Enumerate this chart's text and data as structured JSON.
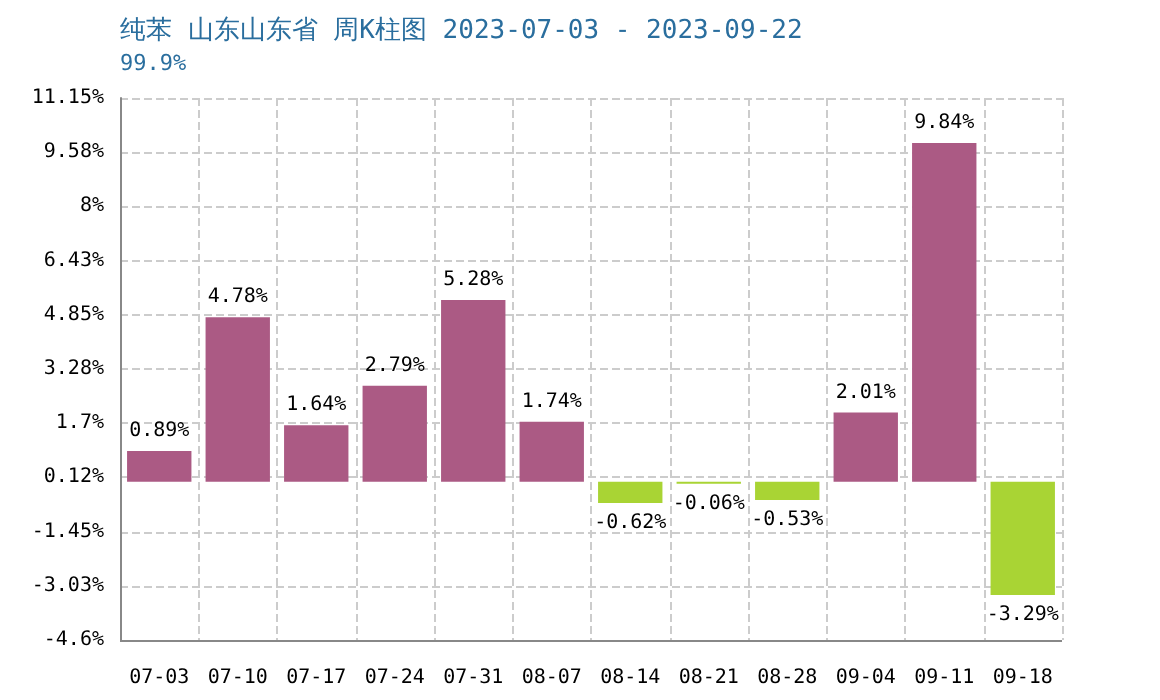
{
  "chart_data": {
    "type": "bar",
    "title": "纯苯 山东山东省 周K柱图 2023-07-03 - 2023-09-22",
    "subtitle": "99.9%",
    "categories": [
      "07-03",
      "07-10",
      "07-17",
      "07-24",
      "07-31",
      "08-07",
      "08-14",
      "08-21",
      "08-28",
      "09-04",
      "09-11",
      "09-18"
    ],
    "values": [
      0.89,
      4.78,
      1.64,
      2.79,
      5.28,
      1.74,
      -0.62,
      -0.06,
      -0.53,
      2.01,
      9.84,
      -3.29
    ],
    "value_labels": [
      "0.89%",
      "4.78%",
      "1.64%",
      "2.79%",
      "5.28%",
      "1.74%",
      "-0.62%",
      "-0.06%",
      "-0.53%",
      "2.01%",
      "9.84%",
      "-3.29%"
    ],
    "colors": [
      "#ab5a84",
      "#ab5a84",
      "#ab5a84",
      "#ab5a84",
      "#ab5a84",
      "#ab5a84",
      "#a9d434",
      "#a9d434",
      "#a9d434",
      "#ab5a84",
      "#ab5a84",
      "#a9d434"
    ],
    "ylim": [
      -4.6,
      11.15
    ],
    "yticks": [
      {
        "value": -4.6,
        "label": "-4.6%"
      },
      {
        "value": -3.025,
        "label": "-3.03%"
      },
      {
        "value": -1.45,
        "label": "-1.45%"
      },
      {
        "value": 0.125,
        "label": "0.12%"
      },
      {
        "value": 1.7,
        "label": "1.7%"
      },
      {
        "value": 3.275,
        "label": "3.28%"
      },
      {
        "value": 4.85,
        "label": "4.85%"
      },
      {
        "value": 6.425,
        "label": "6.43%"
      },
      {
        "value": 8,
        "label": "8%"
      },
      {
        "value": 9.575,
        "label": "9.58%"
      },
      {
        "value": 11.15,
        "label": "11.15%"
      }
    ],
    "grid": true
  }
}
